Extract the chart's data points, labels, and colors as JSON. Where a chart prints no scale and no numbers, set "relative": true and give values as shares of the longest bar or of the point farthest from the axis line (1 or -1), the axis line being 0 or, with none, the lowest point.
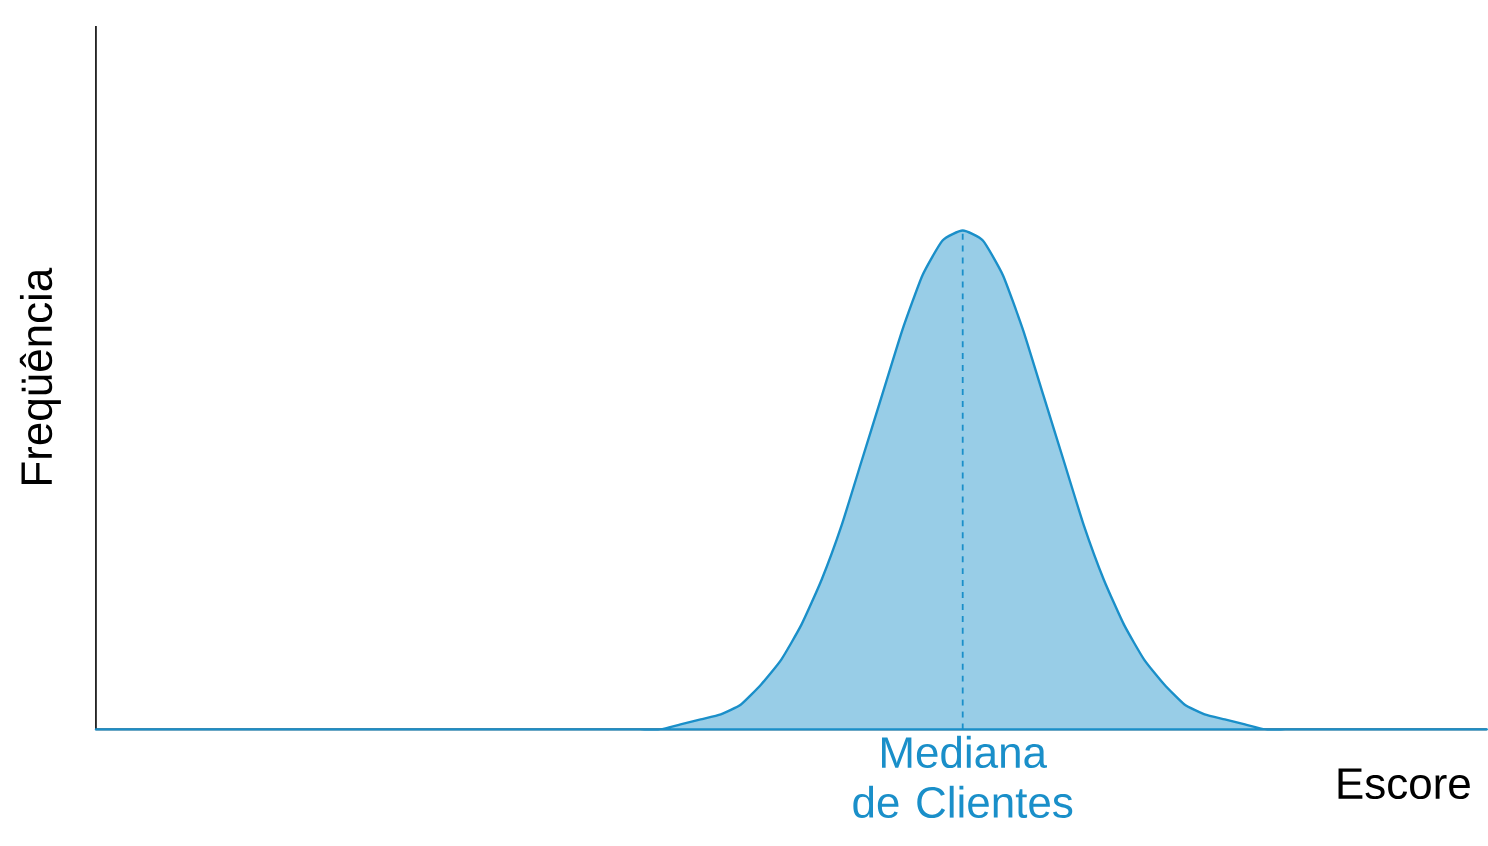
{
  "chart_data": {
    "type": "area",
    "relative": true,
    "xlabel": "Escore",
    "ylabel": "Freqüência",
    "categories": [
      null,
      null,
      null,
      null,
      null,
      null,
      null,
      null,
      null,
      null,
      null,
      null,
      null,
      null,
      null,
      null,
      null,
      null,
      null,
      null,
      null,
      null,
      null,
      null,
      null,
      null,
      null,
      null,
      null,
      null,
      null,
      null,
      null,
      null,
      null,
      null,
      null,
      null,
      null,
      null,
      null,
      null,
      null,
      null,
      null,
      null,
      null,
      null,
      null,
      null,
      null,
      null,
      null,
      null,
      null,
      null,
      null,
      null,
      null,
      null,
      null,
      null,
      null,
      null,
      null,
      null,
      null,
      null,
      null,
      null
    ],
    "series": [
      {
        "color": "#1a8fc9",
        "values": [
          0,
          0,
          0,
          0,
          0,
          0,
          0,
          0,
          0,
          0,
          0,
          0,
          0,
          0,
          0,
          0,
          0,
          0,
          0,
          0,
          0,
          0,
          0,
          0,
          0,
          0,
          0,
          0,
          0,
          0.01,
          0.02,
          0.03,
          0.05,
          0.09,
          0.14,
          0.21,
          0.3,
          0.41,
          0.54,
          0.67,
          0.8,
          0.91,
          0.98,
          1,
          0.98,
          0.91,
          0.8,
          0.67,
          0.54,
          0.41,
          0.3,
          0.21,
          0.14,
          0.09,
          0.05,
          0.03,
          0.02,
          0.01,
          0,
          0,
          0,
          0,
          0,
          0,
          0,
          0,
          0,
          0,
          0,
          0
        ]
      }
    ],
    "annotations": [
      "Mediana de Clientes"
    ]
  }
}
